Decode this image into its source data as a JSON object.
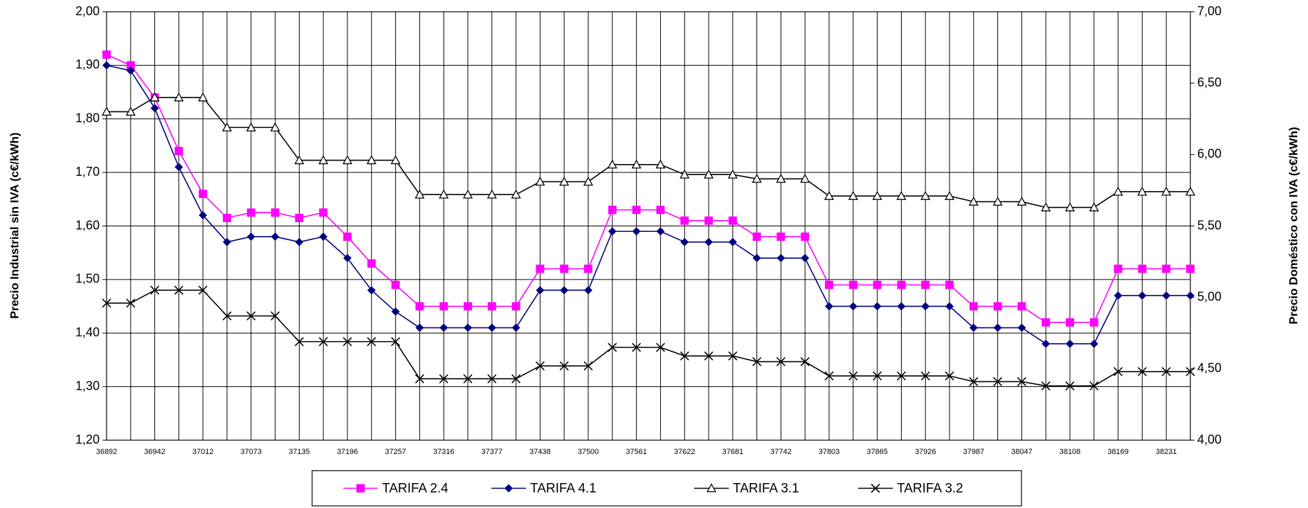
{
  "chart_data": {
    "type": "line",
    "categories": [
      "36892",
      null,
      "36942",
      null,
      "37012",
      null,
      "37073",
      null,
      "37135",
      null,
      "37196",
      null,
      "37257",
      null,
      "37316",
      null,
      "37377",
      null,
      "37438",
      null,
      "37500",
      null,
      "37561",
      null,
      "37622",
      null,
      "37681",
      null,
      "37742",
      null,
      "37803",
      null,
      "37865",
      null,
      "37926",
      null,
      "37987",
      null,
      "38047",
      null,
      "38108",
      null,
      "38169",
      null,
      "38231",
      null
    ],
    "y_label": "Precio Industrial sin IVA (c€/kWh)",
    "y2_label": "Precio Doméstico con IVA (c€/kWh)",
    "ylim": [
      1.2,
      2.0
    ],
    "yticks": [
      {
        "value": 1.2,
        "label": "1,20"
      },
      {
        "value": 1.3,
        "label": "1,30"
      },
      {
        "value": 1.4,
        "label": "1,40"
      },
      {
        "value": 1.5,
        "label": "1,50"
      },
      {
        "value": 1.6,
        "label": "1,60"
      },
      {
        "value": 1.7,
        "label": "1,70"
      },
      {
        "value": 1.8,
        "label": "1,80"
      },
      {
        "value": 1.9,
        "label": "1,90"
      },
      {
        "value": 2.0,
        "label": "2,00"
      }
    ],
    "y2lim": [
      4.0,
      7.0
    ],
    "y2ticks": [
      {
        "value": 4.0,
        "label": "4,00"
      },
      {
        "value": 4.5,
        "label": "4,50"
      },
      {
        "value": 5.0,
        "label": "5,00"
      },
      {
        "value": 5.5,
        "label": "5,50"
      },
      {
        "value": 6.0,
        "label": "6,00"
      },
      {
        "value": 6.5,
        "label": "6,50"
      },
      {
        "value": 7.0,
        "label": "7,00"
      }
    ],
    "grid": true,
    "legend": "bottom",
    "series": [
      {
        "name": "TARIFA 2.4",
        "color": "#ff00ff",
        "marker": "square",
        "axis": "y",
        "values": [
          1.92,
          1.9,
          1.84,
          1.74,
          1.66,
          1.615,
          1.625,
          1.625,
          1.615,
          1.625,
          1.58,
          1.53,
          1.49,
          1.45,
          1.45,
          1.45,
          1.45,
          1.45,
          1.52,
          1.52,
          1.52,
          1.63,
          1.63,
          1.63,
          1.61,
          1.61,
          1.61,
          1.58,
          1.58,
          1.58,
          1.49,
          1.49,
          1.49,
          1.49,
          1.49,
          1.49,
          1.45,
          1.45,
          1.45,
          1.42,
          1.42,
          1.42,
          1.52,
          1.52,
          1.52,
          1.52
        ]
      },
      {
        "name": "TARIFA 4.1",
        "color": "#000080",
        "marker": "diamond",
        "axis": "y",
        "values": [
          1.9,
          1.89,
          1.82,
          1.71,
          1.62,
          1.57,
          1.58,
          1.58,
          1.57,
          1.58,
          1.54,
          1.48,
          1.44,
          1.41,
          1.41,
          1.41,
          1.41,
          1.41,
          1.48,
          1.48,
          1.48,
          1.59,
          1.59,
          1.59,
          1.57,
          1.57,
          1.57,
          1.54,
          1.54,
          1.54,
          1.45,
          1.45,
          1.45,
          1.45,
          1.45,
          1.45,
          1.41,
          1.41,
          1.41,
          1.38,
          1.38,
          1.38,
          1.47,
          1.47,
          1.47,
          1.47
        ]
      },
      {
        "name": "TARIFA 3.1",
        "color": "#000000",
        "marker": "triangle",
        "axis": "y2",
        "values": [
          6.3,
          6.3,
          6.4,
          6.4,
          6.4,
          6.19,
          6.19,
          6.19,
          5.96,
          5.96,
          5.96,
          5.96,
          5.96,
          5.72,
          5.72,
          5.72,
          5.72,
          5.72,
          5.81,
          5.81,
          5.81,
          5.93,
          5.93,
          5.93,
          5.86,
          5.86,
          5.86,
          5.83,
          5.83,
          5.83,
          5.71,
          5.71,
          5.71,
          5.71,
          5.71,
          5.71,
          5.67,
          5.67,
          5.67,
          5.63,
          5.63,
          5.63,
          5.74,
          5.74,
          5.74,
          5.74
        ]
      },
      {
        "name": "TARIFA 3.2",
        "color": "#000000",
        "marker": "x",
        "axis": "y2",
        "values": [
          4.96,
          4.96,
          5.05,
          5.05,
          5.05,
          4.87,
          4.87,
          4.87,
          4.69,
          4.69,
          4.69,
          4.69,
          4.69,
          4.43,
          4.43,
          4.43,
          4.43,
          4.43,
          4.52,
          4.52,
          4.52,
          4.65,
          4.65,
          4.65,
          4.59,
          4.59,
          4.59,
          4.55,
          4.55,
          4.55,
          4.45,
          4.45,
          4.45,
          4.45,
          4.45,
          4.45,
          4.41,
          4.41,
          4.41,
          4.38,
          4.38,
          4.38,
          4.48,
          4.48,
          4.48,
          4.48
        ]
      }
    ]
  }
}
